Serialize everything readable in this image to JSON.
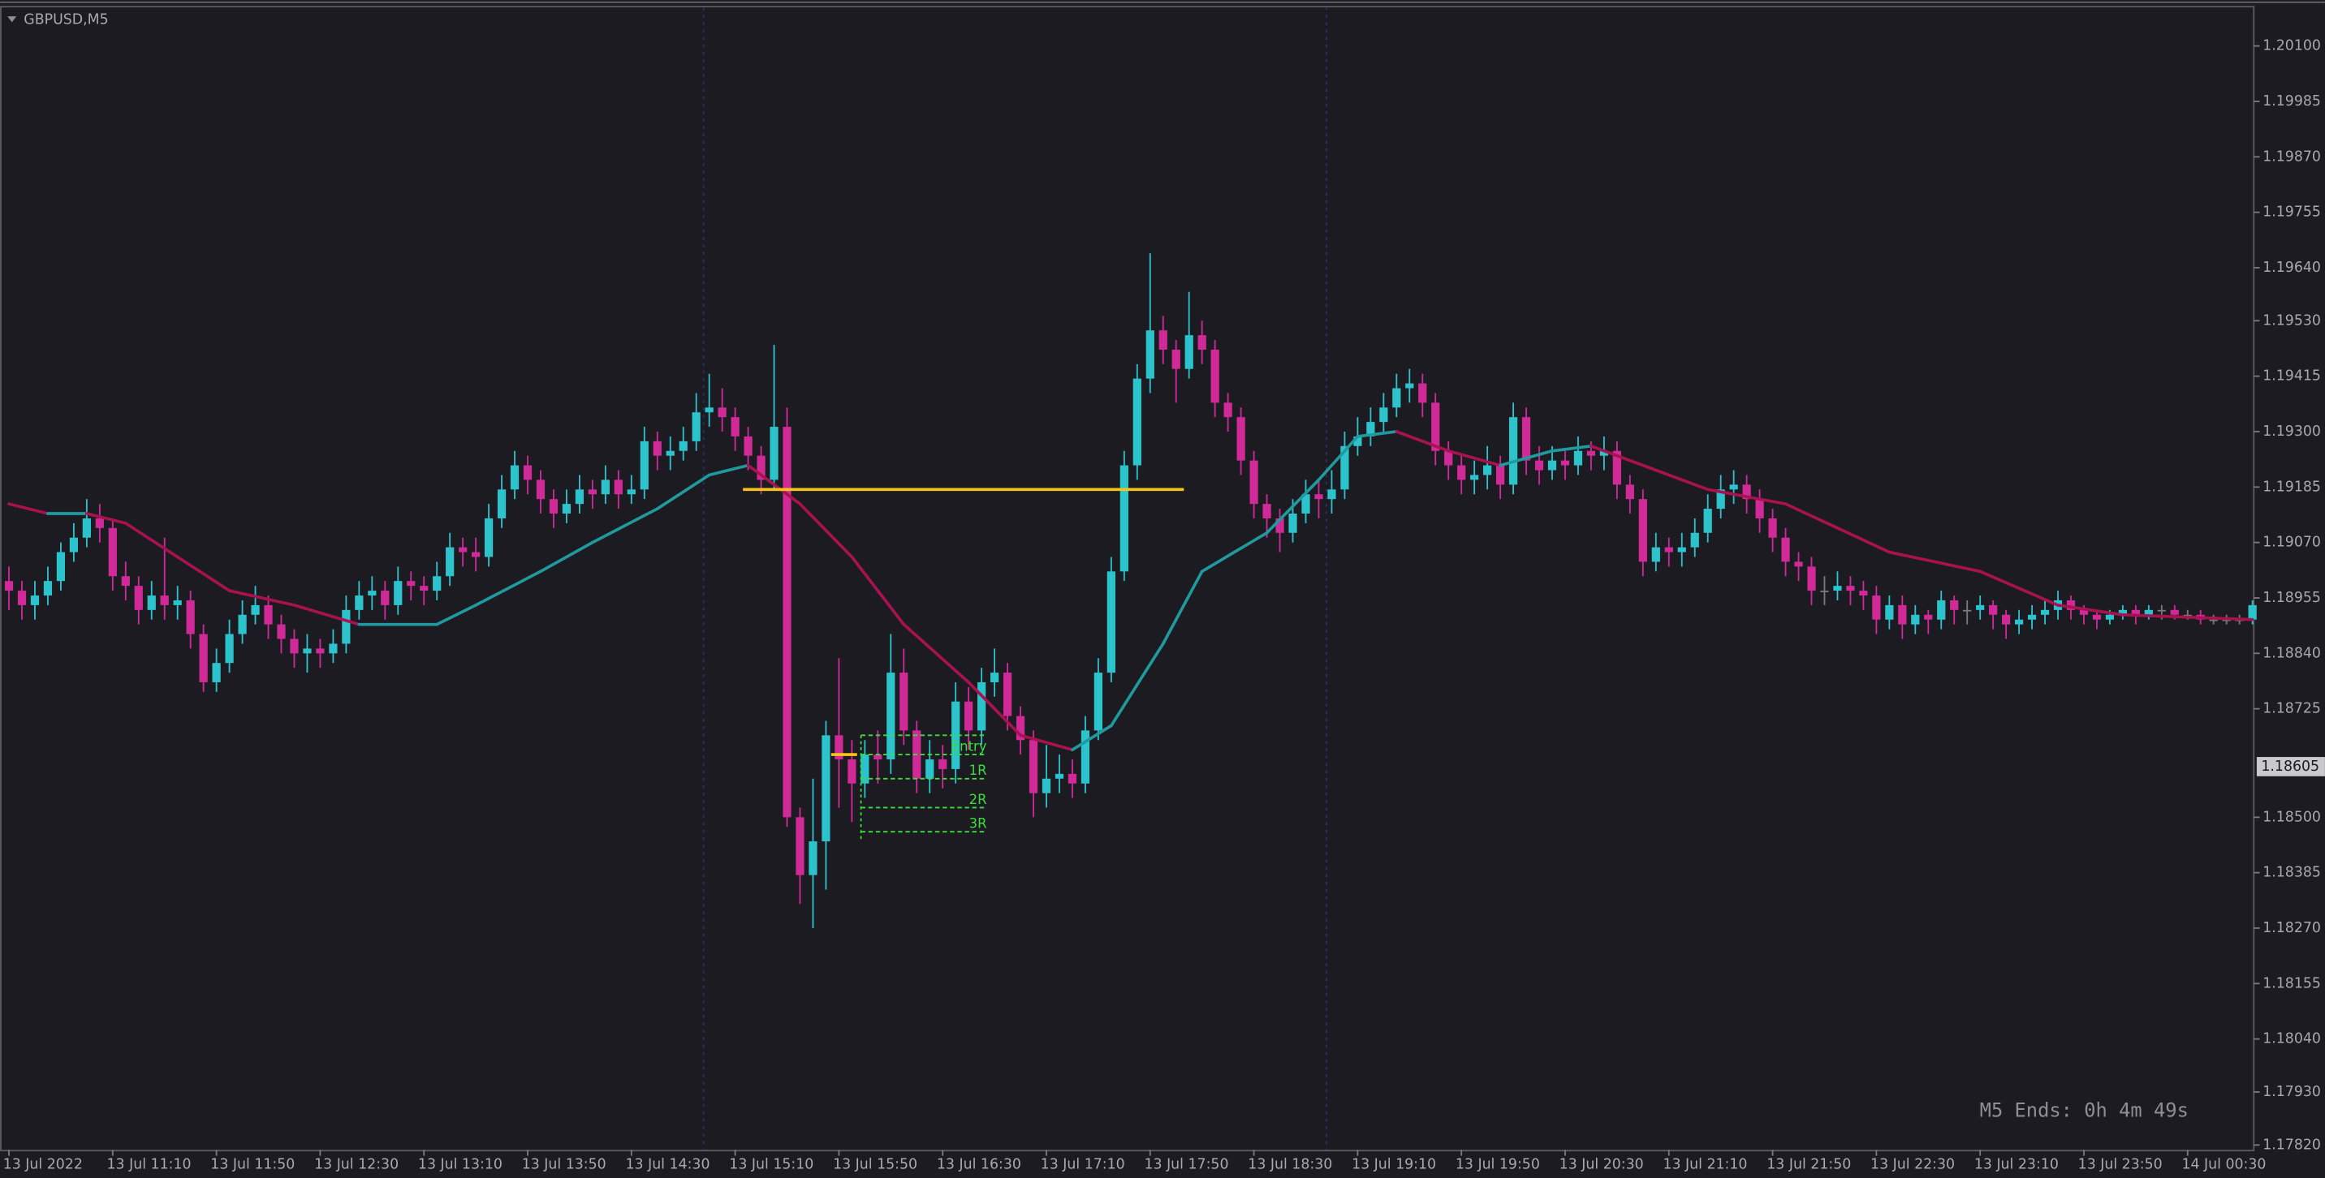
{
  "chart_data": {
    "type": "candlestick",
    "title": "GBPUSD,M5",
    "timer": "M5 Ends: 0h 4m 49s",
    "up_color": "#2cc3cc",
    "down_color": "#d02a98",
    "flat_color": "#7a7a7e",
    "open": [
      1.1899,
      1.1897,
      1.1894,
      1.1896,
      1.1899,
      1.1905,
      1.1908,
      1.1912,
      1.191,
      1.19,
      1.1898,
      1.1893,
      1.1896,
      1.1894,
      1.1895,
      1.1888,
      1.1878,
      1.1882,
      1.1888,
      1.1892,
      1.1894,
      1.189,
      1.1887,
      1.1884,
      1.1885,
      1.1884,
      1.1886,
      1.1893,
      1.1896,
      1.1897,
      1.1894,
      1.1899,
      1.1898,
      1.1897,
      1.19,
      1.1906,
      1.1905,
      1.1904,
      1.1912,
      1.1918,
      1.1923,
      1.192,
      1.1916,
      1.1913,
      1.1915,
      1.1918,
      1.1917,
      1.192,
      1.1917,
      1.1918,
      1.1928,
      1.1925,
      1.1926,
      1.1928,
      1.1934,
      1.1935,
      1.1933,
      1.1929,
      1.1925,
      1.192,
      1.1931,
      1.185,
      1.1838,
      1.1845,
      1.1867,
      1.1862,
      1.1857,
      1.1863,
      1.1862,
      1.188,
      1.1868,
      1.1858,
      1.1862,
      1.186,
      1.1874,
      1.1868,
      1.1878,
      1.188,
      1.1871,
      1.1866,
      1.1855,
      1.1858,
      1.1859,
      1.1857,
      1.1868,
      1.188,
      1.1901,
      1.1923,
      1.1941,
      1.1951,
      1.1947,
      1.1943,
      1.195,
      1.1947,
      1.1936,
      1.1933,
      1.1924,
      1.1915,
      1.1912,
      1.1909,
      1.1913,
      1.1917,
      1.1916,
      1.1918,
      1.1927,
      1.1929,
      1.1932,
      1.1935,
      1.1939,
      1.194,
      1.1936,
      1.1926,
      1.1923,
      1.192,
      1.1921,
      1.1923,
      1.1919,
      1.1933,
      1.1924,
      1.1922,
      1.1924,
      1.1923,
      1.1926,
      1.1925,
      1.1926,
      1.1919,
      1.1916,
      1.1903,
      1.1906,
      1.1905,
      1.1906,
      1.1909,
      1.1914,
      1.1918,
      1.1919,
      1.1916,
      1.1912,
      1.1908,
      1.1903,
      1.1902,
      1.1897,
      1.1897,
      1.1898,
      1.1897,
      1.1896,
      1.1891,
      1.1894,
      1.189,
      1.1892,
      1.1891,
      1.1895,
      1.1893,
      1.1893,
      1.1894,
      1.1892,
      1.189,
      1.1891,
      1.1892,
      1.1893,
      1.1895,
      1.1893,
      1.1892,
      1.1891,
      1.1892,
      1.1893,
      1.1892,
      1.1893,
      1.1893,
      1.1892,
      1.1892,
      1.1891,
      1.1891,
      1.1891,
      1.1891
    ],
    "high": [
      1.1902,
      1.1899,
      1.1899,
      1.1902,
      1.1907,
      1.1911,
      1.1916,
      1.1915,
      1.1912,
      1.1903,
      1.19,
      1.1899,
      1.1908,
      1.1898,
      1.1897,
      1.189,
      1.1885,
      1.1891,
      1.1895,
      1.1898,
      1.1896,
      1.1892,
      1.1889,
      1.1888,
      1.1887,
      1.1889,
      1.1896,
      1.1899,
      1.19,
      1.1899,
      1.1902,
      1.1901,
      1.19,
      1.1903,
      1.1909,
      1.1908,
      1.1908,
      1.1915,
      1.1921,
      1.1926,
      1.1925,
      1.1922,
      1.1918,
      1.1918,
      1.1921,
      1.192,
      1.1923,
      1.1922,
      1.1921,
      1.1931,
      1.193,
      1.1929,
      1.1931,
      1.1938,
      1.1942,
      1.1939,
      1.1935,
      1.1931,
      1.1927,
      1.1948,
      1.1935,
      1.1852,
      1.1858,
      1.187,
      1.1883,
      1.1866,
      1.1866,
      1.1868,
      1.1888,
      1.1885,
      1.187,
      1.1866,
      1.1865,
      1.1878,
      1.1877,
      1.1881,
      1.1885,
      1.1882,
      1.1873,
      1.1868,
      1.1865,
      1.1863,
      1.1862,
      1.1871,
      1.1883,
      1.1904,
      1.1926,
      1.1944,
      1.1967,
      1.1954,
      1.1949,
      1.1959,
      1.1953,
      1.1949,
      1.1938,
      1.1935,
      1.1926,
      1.1917,
      1.1914,
      1.1916,
      1.192,
      1.192,
      1.1922,
      1.193,
      1.1933,
      1.1935,
      1.1938,
      1.1942,
      1.1943,
      1.1942,
      1.1938,
      1.1928,
      1.1925,
      1.1924,
      1.1927,
      1.1925,
      1.1936,
      1.1935,
      1.1927,
      1.1927,
      1.1926,
      1.1929,
      1.1928,
      1.1929,
      1.1928,
      1.1921,
      1.1918,
      1.1909,
      1.1908,
      1.1909,
      1.1912,
      1.1917,
      1.1921,
      1.1922,
      1.1921,
      1.1918,
      1.1914,
      1.191,
      1.1905,
      1.1904,
      1.19,
      1.1901,
      1.19,
      1.1899,
      1.1898,
      1.1896,
      1.1896,
      1.1894,
      1.1893,
      1.1897,
      1.1896,
      1.1895,
      1.1896,
      1.1895,
      1.1893,
      1.1893,
      1.1894,
      1.1895,
      1.1897,
      1.1896,
      1.1894,
      1.1893,
      1.1893,
      1.1894,
      1.1894,
      1.1894,
      1.1894,
      1.1894,
      1.1893,
      1.1893,
      1.1892,
      1.1892,
      1.1892,
      1.1895
    ],
    "low": [
      1.1893,
      1.1891,
      1.1891,
      1.1894,
      1.1897,
      1.1903,
      1.1906,
      1.1907,
      1.1897,
      1.1895,
      1.189,
      1.1891,
      1.1891,
      1.1891,
      1.1885,
      1.1876,
      1.1876,
      1.188,
      1.1886,
      1.189,
      1.1887,
      1.1884,
      1.1881,
      1.188,
      1.1881,
      1.1882,
      1.1884,
      1.1891,
      1.1893,
      1.1891,
      1.1892,
      1.1895,
      1.1894,
      1.1895,
      1.1898,
      1.1902,
      1.1901,
      1.1902,
      1.191,
      1.1916,
      1.1917,
      1.1913,
      1.191,
      1.1911,
      1.1913,
      1.1914,
      1.1915,
      1.1914,
      1.1915,
      1.1916,
      1.1922,
      1.1922,
      1.1924,
      1.1926,
      1.1931,
      1.193,
      1.1926,
      1.1922,
      1.1917,
      1.1918,
      1.1848,
      1.1832,
      1.1827,
      1.1835,
      1.1852,
      1.1849,
      1.1854,
      1.1857,
      1.1859,
      1.1865,
      1.1855,
      1.1855,
      1.1856,
      1.1857,
      1.1864,
      1.1865,
      1.1875,
      1.1868,
      1.1863,
      1.185,
      1.1852,
      1.1855,
      1.1854,
      1.1855,
      1.1866,
      1.1878,
      1.1899,
      1.192,
      1.1938,
      1.1944,
      1.1936,
      1.1941,
      1.1944,
      1.1933,
      1.193,
      1.1921,
      1.1912,
      1.1908,
      1.1905,
      1.1907,
      1.1911,
      1.1912,
      1.1913,
      1.1916,
      1.1925,
      1.1927,
      1.193,
      1.1933,
      1.1936,
      1.1933,
      1.1923,
      1.192,
      1.1917,
      1.1917,
      1.1918,
      1.1916,
      1.1917,
      1.1921,
      1.1919,
      1.192,
      1.192,
      1.1921,
      1.1922,
      1.1922,
      1.1916,
      1.1913,
      1.19,
      1.1901,
      1.1902,
      1.1902,
      1.1904,
      1.1907,
      1.1912,
      1.1915,
      1.1913,
      1.1909,
      1.1905,
      1.19,
      1.1899,
      1.1894,
      1.1894,
      1.1895,
      1.1894,
      1.1893,
      1.1888,
      1.1889,
      1.1887,
      1.1888,
      1.1888,
      1.1889,
      1.189,
      1.189,
      1.1891,
      1.1889,
      1.1887,
      1.1888,
      1.1889,
      1.189,
      1.1891,
      1.1891,
      1.189,
      1.1889,
      1.189,
      1.1891,
      1.189,
      1.1891,
      1.1891,
      1.1891,
      1.1891,
      1.189,
      1.189,
      1.189,
      1.189,
      1.189
    ],
    "close": [
      1.1897,
      1.1894,
      1.1896,
      1.1899,
      1.1905,
      1.1908,
      1.1912,
      1.191,
      1.19,
      1.1898,
      1.1893,
      1.1896,
      1.1894,
      1.1895,
      1.1888,
      1.1878,
      1.1882,
      1.1888,
      1.1892,
      1.1894,
      1.189,
      1.1887,
      1.1884,
      1.1885,
      1.1884,
      1.1886,
      1.1893,
      1.1896,
      1.1897,
      1.1894,
      1.1899,
      1.1898,
      1.1897,
      1.19,
      1.1906,
      1.1905,
      1.1904,
      1.1912,
      1.1918,
      1.1923,
      1.192,
      1.1916,
      1.1913,
      1.1915,
      1.1918,
      1.1917,
      1.192,
      1.1917,
      1.1918,
      1.1928,
      1.1925,
      1.1926,
      1.1928,
      1.1934,
      1.1935,
      1.1933,
      1.1929,
      1.1925,
      1.192,
      1.1931,
      1.185,
      1.1838,
      1.1845,
      1.1867,
      1.1862,
      1.1857,
      1.1863,
      1.1862,
      1.188,
      1.1868,
      1.1858,
      1.1862,
      1.186,
      1.1874,
      1.1868,
      1.1878,
      1.188,
      1.1871,
      1.1866,
      1.1855,
      1.1858,
      1.1859,
      1.1857,
      1.1868,
      1.188,
      1.1901,
      1.1923,
      1.1941,
      1.1951,
      1.1947,
      1.1943,
      1.195,
      1.1947,
      1.1936,
      1.1933,
      1.1924,
      1.1915,
      1.1912,
      1.1909,
      1.1913,
      1.1917,
      1.1916,
      1.1918,
      1.1927,
      1.1929,
      1.1932,
      1.1935,
      1.1939,
      1.194,
      1.1936,
      1.1926,
      1.1923,
      1.192,
      1.1921,
      1.1923,
      1.1919,
      1.1933,
      1.1924,
      1.1922,
      1.1924,
      1.1923,
      1.1926,
      1.1925,
      1.1926,
      1.1919,
      1.1916,
      1.1903,
      1.1906,
      1.1905,
      1.1906,
      1.1909,
      1.1914,
      1.1918,
      1.1919,
      1.1916,
      1.1912,
      1.1908,
      1.1903,
      1.1902,
      1.1897,
      1.1897,
      1.1898,
      1.1897,
      1.1896,
      1.1891,
      1.1894,
      1.189,
      1.1892,
      1.1891,
      1.1895,
      1.1893,
      1.1893,
      1.1894,
      1.1892,
      1.189,
      1.1891,
      1.1892,
      1.1893,
      1.1895,
      1.1893,
      1.1892,
      1.1891,
      1.1892,
      1.1893,
      1.1892,
      1.1893,
      1.1893,
      1.1892,
      1.1892,
      1.1891,
      1.1891,
      1.1891,
      1.1891,
      1.1894
    ],
    "ma": {
      "up_color": "#1f9a9e",
      "down_color": "#a8124f",
      "x": [
        0,
        3,
        6,
        9,
        13,
        17,
        22,
        27,
        33,
        36,
        41,
        45,
        50,
        54,
        57,
        61,
        65,
        69,
        74,
        78,
        82,
        85,
        89,
        92,
        97,
        101,
        104,
        107,
        111,
        115,
        119,
        122,
        125,
        131,
        137,
        141,
        145,
        152,
        158,
        163,
        173
      ],
      "values": [
        1.1915,
        1.1913,
        1.1913,
        1.1911,
        1.1904,
        1.1897,
        1.1894,
        1.189,
        1.189,
        1.1894,
        1.1901,
        1.1907,
        1.1914,
        1.1921,
        1.1923,
        1.1915,
        1.1904,
        1.189,
        1.1878,
        1.1867,
        1.1864,
        1.1869,
        1.1886,
        1.1901,
        1.1909,
        1.192,
        1.1929,
        1.193,
        1.1926,
        1.1923,
        1.1926,
        1.1927,
        1.1924,
        1.1918,
        1.1915,
        1.191,
        1.1905,
        1.1901,
        1.1894,
        1.1892,
        1.1891
      ]
    },
    "hlines_color": "#f5c518",
    "hlines": [
      {
        "value": 1.1918,
        "x": [
          56.6,
          90.6
        ]
      },
      {
        "value": 1.1863,
        "x": [
          63.4,
          65.4
        ]
      }
    ],
    "trade_levels_color": "#3ddc3d",
    "trade_levels_x": [
      65.7,
      75.4
    ],
    "trade_levels": [
      {
        "value": 1.1867
      },
      {
        "label": "Entry",
        "value": 1.1863
      },
      {
        "label": "1R",
        "value": 1.1858
      },
      {
        "label": "2R",
        "value": 1.1852
      },
      {
        "label": "3R",
        "value": 1.1847
      }
    ],
    "price_label": {
      "value": 1.18605,
      "label": "1.18605"
    },
    "xlim": [
      -0.57,
      173.1
    ],
    "ylim": [
      1.1781,
      1.2018
    ],
    "xticks": [
      {
        "value": 0,
        "label": "13 Jul 2022"
      },
      {
        "value": 8,
        "label": "13 Jul 11:10"
      },
      {
        "value": 16,
        "label": "13 Jul 11:50"
      },
      {
        "value": 24,
        "label": "13 Jul 12:30"
      },
      {
        "value": 32,
        "label": "13 Jul 13:10"
      },
      {
        "value": 40,
        "label": "13 Jul 13:50"
      },
      {
        "value": 48,
        "label": "13 Jul 14:30"
      },
      {
        "value": 56,
        "label": "13 Jul 15:10"
      },
      {
        "value": 64,
        "label": "13 Jul 15:50"
      },
      {
        "value": 72,
        "label": "13 Jul 16:30"
      },
      {
        "value": 80,
        "label": "13 Jul 17:10"
      },
      {
        "value": 88,
        "label": "13 Jul 17:50"
      },
      {
        "value": 96,
        "label": "13 Jul 18:30"
      },
      {
        "value": 104,
        "label": "13 Jul 19:10"
      },
      {
        "value": 112,
        "label": "13 Jul 19:50"
      },
      {
        "value": 120,
        "label": "13 Jul 20:30"
      },
      {
        "value": 128,
        "label": "13 Jul 21:10"
      },
      {
        "value": 136,
        "label": "13 Jul 21:50"
      },
      {
        "value": 144,
        "label": "13 Jul 22:30"
      },
      {
        "value": 152,
        "label": "13 Jul 23:10"
      },
      {
        "value": 160,
        "label": "13 Jul 23:50"
      },
      {
        "value": 168,
        "label": "14 Jul 00:30"
      }
    ],
    "yticks": [
      {
        "value": 1.201,
        "label": "1.20100"
      },
      {
        "value": 1.19985,
        "label": "1.19985"
      },
      {
        "value": 1.1987,
        "label": "1.19870"
      },
      {
        "value": 1.19755,
        "label": "1.19755"
      },
      {
        "value": 1.1964,
        "label": "1.19640"
      },
      {
        "value": 1.1953,
        "label": "1.19530"
      },
      {
        "value": 1.19415,
        "label": "1.19415"
      },
      {
        "value": 1.193,
        "label": "1.19300"
      },
      {
        "value": 1.19185,
        "label": "1.19185"
      },
      {
        "value": 1.1907,
        "label": "1.19070"
      },
      {
        "value": 1.18955,
        "label": "1.18955"
      },
      {
        "value": 1.1884,
        "label": "1.18840"
      },
      {
        "value": 1.18725,
        "label": "1.18725"
      },
      {
        "value": 1.185,
        "label": "1.18500"
      },
      {
        "value": 1.18385,
        "label": "1.18385"
      },
      {
        "value": 1.1827,
        "label": "1.18270"
      },
      {
        "value": 1.18155,
        "label": "1.18155"
      },
      {
        "value": 1.1804,
        "label": "1.18040"
      },
      {
        "value": 1.1793,
        "label": "1.17930"
      },
      {
        "value": 1.1782,
        "label": "1.17820"
      }
    ]
  }
}
